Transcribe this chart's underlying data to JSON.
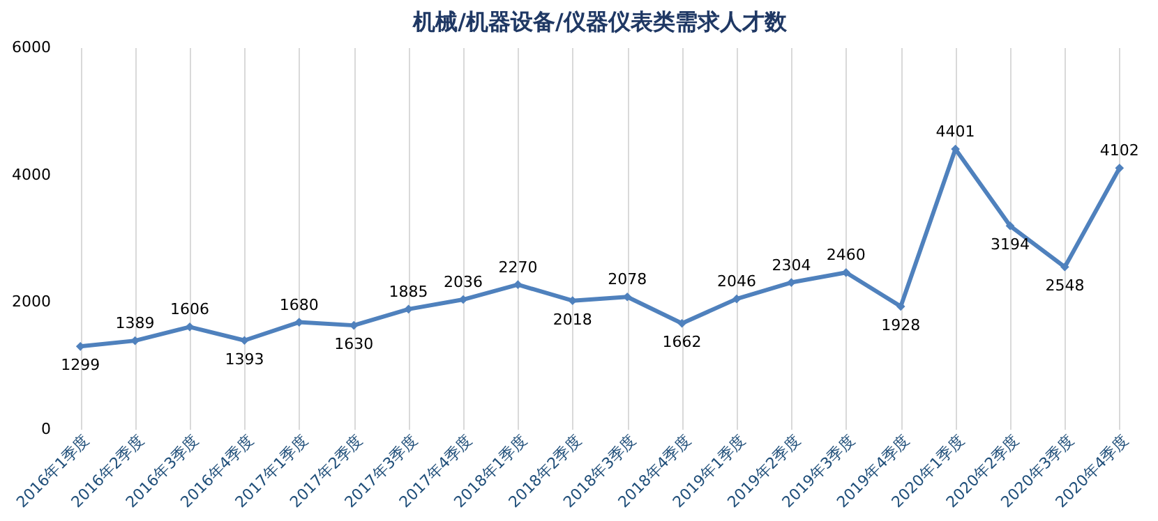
{
  "chart_data": {
    "type": "line",
    "title": "机械/机器设备/仪器仪表类需求人才数",
    "categories": [
      "2016年1季度",
      "2016年2季度",
      "2016年3季度",
      "2016年4季度",
      "2017年1季度",
      "2017年2季度",
      "2017年3季度",
      "2017年4季度",
      "2018年1季度",
      "2018年2季度",
      "2018年3季度",
      "2018年4季度",
      "2019年1季度",
      "2019年2季度",
      "2019年3季度",
      "2019年4季度",
      "2020年1季度",
      "2020年2季度",
      "2020年3季度",
      "2020年4季度"
    ],
    "series": [
      {
        "color": "#4f81bd",
        "values": [
          1299,
          1389,
          1606,
          1393,
          1680,
          1630,
          1885,
          2036,
          2270,
          2018,
          2078,
          1662,
          2046,
          2304,
          2460,
          1928,
          4401,
          3194,
          2548,
          4102
        ]
      }
    ],
    "ylim": [
      0,
      6000
    ],
    "yticks": [
      0,
      2000,
      4000,
      6000
    ],
    "grid": "x",
    "marker": "diamond",
    "line_style": "solid",
    "data_labels": true
  }
}
